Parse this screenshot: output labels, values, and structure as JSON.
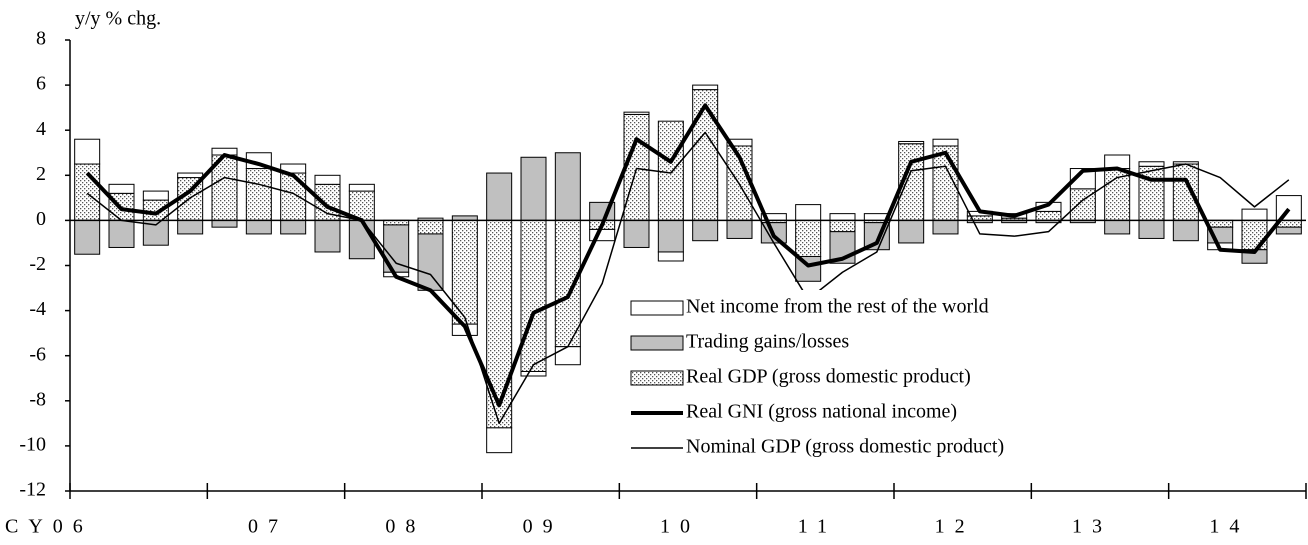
{
  "chart_data": {
    "type": "bar",
    "y_label": "y/y % chg.",
    "categories": [
      null,
      "CY06",
      null,
      null,
      null,
      "07",
      null,
      null,
      null,
      "08",
      null,
      null,
      null,
      "09",
      null,
      null,
      null,
      "10",
      null,
      null,
      null,
      "11",
      null,
      null,
      null,
      "12",
      null,
      null,
      null,
      "13",
      null,
      null,
      null,
      "14",
      null,
      null
    ],
    "ylim": [
      -12,
      8
    ],
    "yticks": [
      -12,
      -10,
      -8,
      -6,
      -4,
      -2,
      0,
      2,
      4,
      6,
      8
    ],
    "stacked": true,
    "series": [
      {
        "name": "Net income from the rest of the world",
        "kind": "bar",
        "color": "#ffffff",
        "stack_order": 2,
        "values": [
          1.1,
          0.4,
          0.4,
          0.2,
          0.3,
          0.7,
          0.4,
          0.4,
          0.3,
          -0.2,
          0.1,
          -0.5,
          -1.1,
          -0.2,
          -0.8,
          -0.5,
          0.1,
          -0.4,
          0.2,
          0.3,
          0.3,
          0.7,
          0.3,
          0.3,
          0.1,
          0.3,
          0.2,
          0.2,
          0.4,
          0.9,
          0.6,
          0.2,
          0.1,
          -0.3,
          0.5,
          1.1
        ]
      },
      {
        "name": "Trading gains/losses",
        "kind": "bar",
        "color": "#c0c0c0",
        "stack_order": 1,
        "values": [
          -1.5,
          -1.2,
          -1.1,
          -0.6,
          -0.3,
          -0.6,
          -0.6,
          -1.4,
          -1.7,
          -2.1,
          -2.5,
          0.2,
          2.1,
          2.8,
          3.0,
          0.8,
          -1.2,
          -1.4,
          -0.9,
          -0.8,
          -0.9,
          -1.1,
          -1.4,
          -1.2,
          -1.0,
          -0.6,
          -0.1,
          -0.1,
          -0.1,
          -0.1,
          -0.6,
          -0.8,
          -0.9,
          -0.7,
          -0.6,
          -0.3
        ]
      },
      {
        "name": "Real GDP (gross domestic product)",
        "kind": "bar",
        "color": "#ffffff",
        "pattern": "dots",
        "stack_order": 0,
        "values": [
          2.5,
          1.2,
          0.9,
          1.9,
          2.9,
          2.3,
          2.1,
          1.6,
          1.3,
          -0.2,
          -0.6,
          -4.6,
          -9.2,
          -6.7,
          -5.6,
          -0.4,
          4.7,
          4.4,
          5.8,
          3.3,
          -0.1,
          -1.6,
          -0.5,
          -0.1,
          3.4,
          3.3,
          0.2,
          0.1,
          0.4,
          1.4,
          2.3,
          2.4,
          2.5,
          -0.3,
          -1.3,
          -0.3
        ]
      },
      {
        "name": "Real GNI (gross national income)",
        "kind": "line",
        "color": "#000000",
        "width": 4,
        "values": [
          2.1,
          0.5,
          0.3,
          1.3,
          2.9,
          2.5,
          2.0,
          0.6,
          0.0,
          -2.5,
          -3.1,
          -4.7,
          -8.2,
          -4.1,
          -3.4,
          -0.2,
          3.6,
          2.6,
          5.1,
          2.8,
          -0.7,
          -2.0,
          -1.7,
          -1.0,
          2.6,
          3.0,
          0.4,
          0.2,
          0.7,
          2.2,
          2.3,
          1.8,
          1.8,
          -1.3,
          -1.4,
          0.5
        ]
      },
      {
        "name": "Nominal GDP (gross domestic product)",
        "kind": "line",
        "color": "#000000",
        "width": 1.5,
        "values": [
          1.2,
          0.0,
          -0.2,
          1.0,
          1.9,
          1.6,
          1.2,
          0.3,
          0.0,
          -1.9,
          -2.4,
          -4.3,
          -9.0,
          -6.4,
          -5.6,
          -2.8,
          2.3,
          2.1,
          3.9,
          1.6,
          -1.0,
          -3.5,
          -2.3,
          -1.4,
          2.2,
          2.4,
          -0.6,
          -0.7,
          -0.5,
          0.9,
          1.9,
          2.2,
          2.5,
          1.9,
          0.6,
          1.8
        ]
      }
    ]
  }
}
